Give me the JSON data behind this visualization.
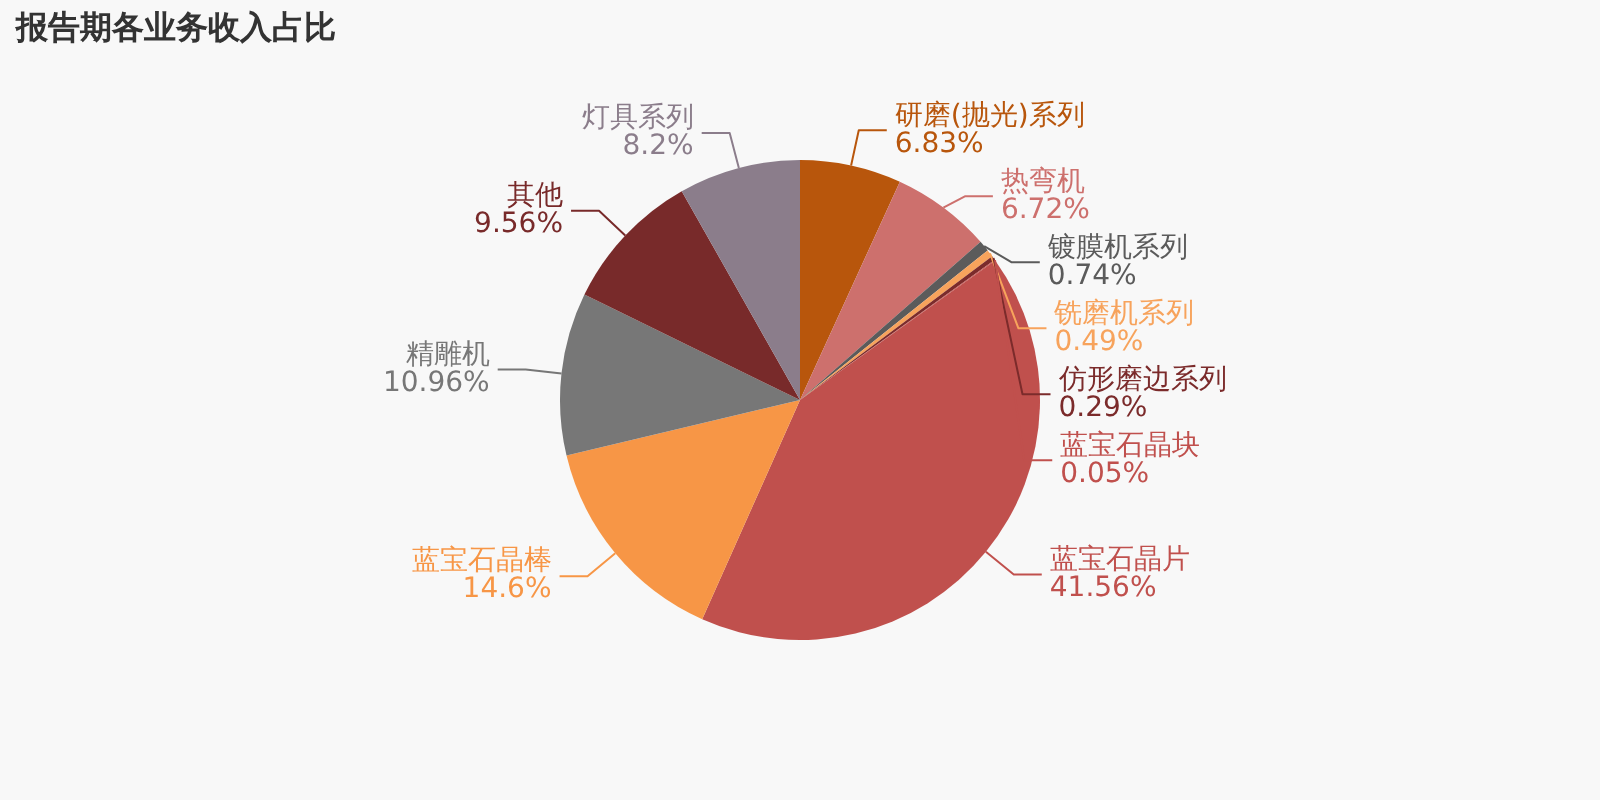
{
  "chart_data": {
    "type": "pie",
    "title": "报告期各业务收入占比",
    "categories": [
      "研磨(抛光)系列",
      "热弯机",
      "镀膜机系列",
      "铣磨机系列",
      "仿形磨边系列",
      "蓝宝石晶块",
      "蓝宝石晶片",
      "蓝宝石晶棒",
      "精雕机",
      "其他",
      "灯具系列"
    ],
    "values": [
      6.83,
      6.72,
      0.74,
      0.49,
      0.29,
      0.05,
      41.56,
      14.6,
      10.96,
      9.56,
      8.2
    ],
    "value_labels": [
      "6.83%",
      "6.72%",
      "0.74%",
      "0.49%",
      "0.29%",
      "0.05%",
      "41.56%",
      "14.6%",
      "10.96%",
      "9.56%",
      "8.2%"
    ],
    "colors": [
      "#b8560c",
      "#cd706d",
      "#5b5b5b",
      "#f7a35c",
      "#7b2b2b",
      "#c0504d",
      "#c0504d",
      "#f79646",
      "#777777",
      "#782a2a",
      "#8b7d8b"
    ],
    "legend": false
  }
}
